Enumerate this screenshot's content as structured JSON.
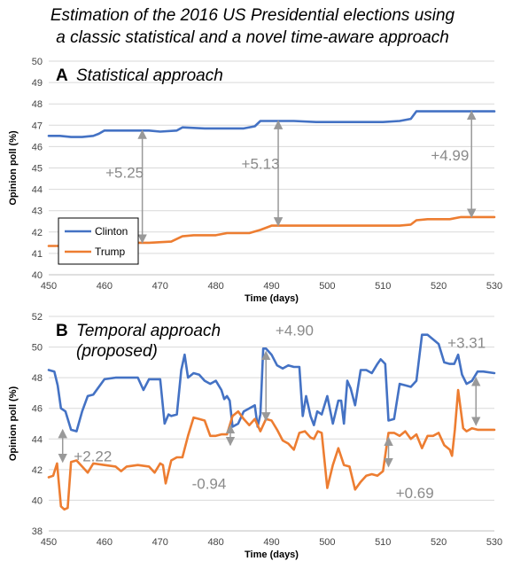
{
  "figure_title_line1": "Estimation of the 2016 US Presidential elections using",
  "figure_title_line2": "a classic statistical and a novel time-aware approach",
  "colors": {
    "clinton": "#4472C4",
    "trump": "#ED7D31",
    "annotation": "#999999",
    "grid": "#d9d9d9"
  },
  "chart_data": [
    {
      "type": "line",
      "panel_letter": "A",
      "title": "Statistical approach",
      "xlabel": "Time (days)",
      "ylabel": "Opinion poll (%)",
      "xlim": [
        450,
        530
      ],
      "ylim": [
        40,
        50
      ],
      "x_ticks": [
        450,
        460,
        470,
        480,
        490,
        500,
        510,
        520,
        530
      ],
      "y_ticks": [
        40,
        41,
        42,
        43,
        44,
        45,
        46,
        47,
        48,
        49,
        50
      ],
      "grid": "horizontal",
      "legend": {
        "position": "bottom-left",
        "entries": [
          "Clinton",
          "Trump"
        ]
      },
      "series": [
        {
          "name": "Clinton",
          "color": "#4472C4",
          "x": [
            450,
            452,
            454,
            456,
            458,
            459,
            460,
            464,
            468,
            470,
            473,
            474,
            478,
            482,
            485,
            487,
            488,
            490,
            494,
            498,
            502,
            506,
            510,
            513,
            515,
            516,
            518,
            522,
            526,
            530
          ],
          "y": [
            46.5,
            46.5,
            46.45,
            46.45,
            46.5,
            46.6,
            46.75,
            46.75,
            46.75,
            46.7,
            46.75,
            46.9,
            46.85,
            46.85,
            46.85,
            46.95,
            47.2,
            47.2,
            47.2,
            47.15,
            47.15,
            47.15,
            47.15,
            47.2,
            47.3,
            47.65,
            47.65,
            47.65,
            47.65,
            47.65
          ]
        },
        {
          "name": "Trump",
          "color": "#ED7D31",
          "x": [
            450,
            452,
            455,
            458,
            460,
            464,
            468,
            472,
            474,
            476,
            480,
            482,
            486,
            488,
            490,
            494,
            498,
            502,
            506,
            510,
            513,
            515,
            516,
            518,
            522,
            524,
            526,
            530
          ],
          "y": [
            41.35,
            41.35,
            41.4,
            41.45,
            41.5,
            41.5,
            41.5,
            41.55,
            41.8,
            41.85,
            41.85,
            41.95,
            41.95,
            42.1,
            42.3,
            42.3,
            42.3,
            42.3,
            42.3,
            42.3,
            42.3,
            42.35,
            42.55,
            42.6,
            42.6,
            42.7,
            42.7,
            42.7
          ]
        }
      ],
      "annotations": [
        {
          "text": "+5.25",
          "text_x": 460.2,
          "text_y": 44.8,
          "arrow_x": 466.8,
          "arrow_from": 41.5,
          "arrow_to": 46.75
        },
        {
          "text": "+5.13",
          "text_x": 484.6,
          "text_y": 45.2,
          "arrow_x": 491.2,
          "arrow_from": 42.3,
          "arrow_to": 47.2
        },
        {
          "text": "+4.99",
          "text_x": 518.6,
          "text_y": 45.6,
          "arrow_x": 525.9,
          "arrow_from": 42.7,
          "arrow_to": 47.65
        }
      ]
    },
    {
      "type": "line",
      "panel_letter": "B",
      "title": "Temporal approach",
      "title_line2": "(proposed)",
      "xlabel": "Time (days)",
      "ylabel": "Opinion poll (%)",
      "xlim": [
        450,
        530
      ],
      "ylim": [
        38,
        52
      ],
      "x_ticks": [
        450,
        460,
        470,
        480,
        490,
        500,
        510,
        520,
        530
      ],
      "y_ticks": [
        38,
        40,
        42,
        44,
        46,
        48,
        50,
        52
      ],
      "grid": "horizontal",
      "series": [
        {
          "name": "Clinton",
          "color": "#4472C4",
          "x": [
            450,
            451,
            451.6,
            452.2,
            453,
            454,
            455,
            456,
            457,
            458,
            460,
            462,
            464,
            466,
            467,
            468,
            469,
            470,
            470.8,
            471.5,
            472,
            473,
            473.8,
            474.4,
            475,
            476,
            477,
            478,
            479,
            480,
            481,
            481.5,
            482,
            482.5,
            483,
            484,
            485,
            486,
            487,
            487.5,
            488,
            488.5,
            489,
            490,
            491,
            492,
            493,
            494,
            495,
            495.6,
            496.2,
            497,
            497.6,
            498.2,
            499,
            500,
            501,
            502,
            502.5,
            503,
            503.6,
            504.2,
            505,
            506,
            507,
            508,
            509,
            509.6,
            510.4,
            511,
            512,
            513,
            514,
            515,
            516,
            517,
            518,
            519,
            520,
            521,
            522,
            522.8,
            523.5,
            524.2,
            525,
            526,
            527,
            528,
            530
          ],
          "y": [
            48.5,
            48.4,
            47.5,
            46.0,
            45.8,
            44.6,
            44.5,
            45.8,
            46.8,
            46.9,
            47.9,
            48.0,
            48.0,
            48.0,
            47.2,
            47.9,
            47.9,
            47.9,
            45.0,
            45.6,
            45.5,
            45.6,
            48.5,
            49.5,
            48.0,
            48.3,
            48.2,
            47.8,
            47.6,
            47.8,
            47.2,
            46.6,
            46.8,
            46.5,
            44.8,
            45.0,
            45.8,
            46.0,
            46.2,
            44.8,
            45.6,
            49.9,
            49.9,
            49.5,
            48.8,
            48.6,
            48.8,
            48.7,
            48.7,
            45.5,
            46.8,
            45.5,
            44.9,
            45.8,
            45.6,
            46.8,
            45.0,
            46.5,
            46.5,
            45.0,
            47.8,
            47.3,
            46.2,
            48.5,
            48.5,
            48.3,
            48.9,
            49.2,
            48.9,
            45.2,
            45.3,
            47.6,
            47.5,
            47.4,
            47.8,
            50.8,
            50.8,
            50.5,
            50.2,
            49.0,
            48.9,
            48.9,
            49.5,
            48.2,
            47.6,
            47.8,
            48.4,
            48.4,
            48.3
          ]
        },
        {
          "name": "Trump",
          "color": "#ED7D31",
          "x": [
            450,
            450.8,
            451.5,
            452.2,
            452.8,
            453.4,
            454,
            455,
            456,
            457,
            458,
            460,
            462,
            463,
            464,
            466,
            468,
            469,
            470,
            470.5,
            471,
            472,
            473,
            474,
            475,
            476,
            477,
            478,
            479,
            480,
            481,
            482,
            483,
            484,
            485,
            486,
            487,
            488,
            489,
            490,
            491,
            492,
            493,
            494,
            495,
            496,
            497,
            497.6,
            498.3,
            499,
            500,
            501,
            502,
            503,
            504,
            505,
            506,
            507,
            508,
            509,
            510,
            511,
            512,
            513,
            514,
            515,
            516,
            517,
            518,
            519,
            520,
            521,
            522,
            522.4,
            522.9,
            523.5,
            524.4,
            525,
            526,
            527,
            528,
            530
          ],
          "y": [
            41.5,
            41.6,
            42.4,
            39.6,
            39.4,
            39.5,
            42.5,
            42.6,
            42.2,
            41.8,
            42.4,
            42.3,
            42.2,
            41.9,
            42.2,
            42.3,
            42.2,
            41.8,
            42.4,
            42.3,
            41.1,
            42.6,
            42.8,
            42.8,
            44.2,
            45.4,
            45.3,
            45.2,
            44.2,
            44.2,
            44.3,
            44.3,
            45.5,
            45.8,
            45.3,
            44.9,
            45.3,
            44.5,
            45.3,
            45.2,
            44.6,
            43.9,
            43.7,
            43.3,
            44.4,
            44.5,
            44.1,
            44.0,
            44.5,
            44.4,
            40.8,
            42.3,
            43.4,
            42.3,
            42.2,
            40.7,
            41.2,
            41.6,
            41.7,
            41.6,
            41.9,
            44.4,
            44.4,
            44.2,
            44.5,
            44.0,
            44.3,
            43.4,
            44.2,
            44.2,
            44.4,
            43.6,
            43.3,
            42.9,
            44.6,
            47.2,
            44.7,
            44.5,
            44.7,
            44.6,
            44.6,
            44.6
          ]
        }
      ],
      "annotations": [
        {
          "text": "+2.22",
          "text_x": 454.5,
          "text_y": 42.9,
          "arrow_x": 452.5,
          "arrow_from": 42.5,
          "arrow_to": 44.6
        },
        {
          "text": "-0.94",
          "text_x": 475.7,
          "text_y": 41.1,
          "arrow_x": 482.6,
          "arrow_from": 44.9,
          "arrow_to": 43.6
        },
        {
          "text": "+4.90",
          "text_x": 490.7,
          "text_y": 51.1,
          "arrow_x": 489.0,
          "arrow_from": 45.2,
          "arrow_to": 49.7
        },
        {
          "text": "+0.69",
          "text_x": 512.3,
          "text_y": 40.5,
          "arrow_x": 511.0,
          "arrow_from": 42.2,
          "arrow_to": 44.1
        },
        {
          "text": "+3.31",
          "text_x": 521.6,
          "text_y": 50.3,
          "arrow_x": 526.7,
          "arrow_from": 44.9,
          "arrow_to": 48.0
        }
      ]
    }
  ]
}
